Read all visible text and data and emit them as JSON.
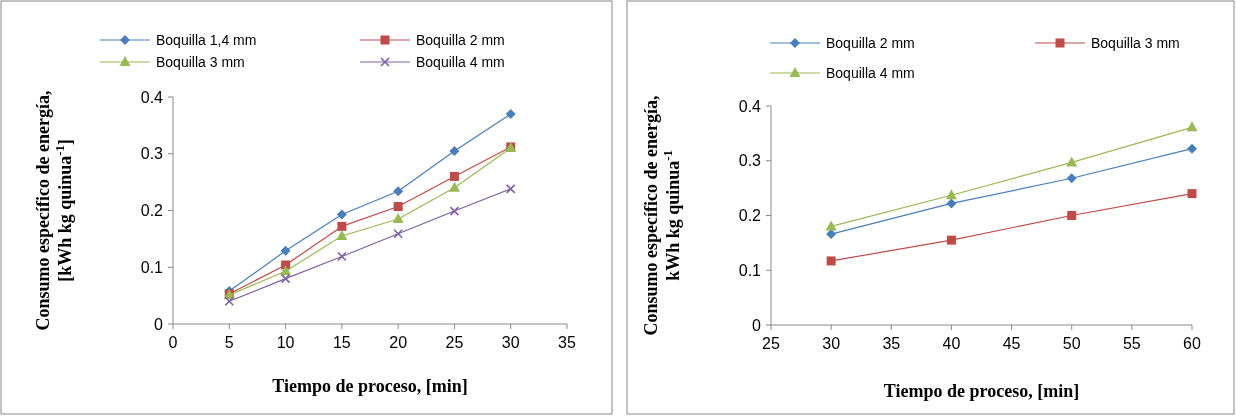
{
  "chart_data": [
    {
      "type": "line",
      "xlabel": "Tiempo de proceso, [min]",
      "ylabel": "Consumo específico de energía,\n[kWh kg quinua$^{-1}$]",
      "x": [
        5,
        10,
        15,
        20,
        25,
        30
      ],
      "xlim": [
        0,
        35
      ],
      "xticks": [
        0,
        5,
        10,
        15,
        20,
        25,
        30,
        35
      ],
      "ylim": [
        0,
        0.4
      ],
      "yticks": [
        0,
        0.1,
        0.2,
        0.3,
        0.4
      ],
      "legend": "top",
      "grid": false,
      "series": [
        {
          "name": "Boquilla 1,4 mm",
          "color": "#4a7ebb",
          "marker": "diamond",
          "values": [
            0.058,
            0.129,
            0.193,
            0.234,
            0.305,
            0.37
          ]
        },
        {
          "name": "Boquilla 2 mm",
          "color": "#be4b48",
          "marker": "square",
          "values": [
            0.053,
            0.104,
            0.172,
            0.207,
            0.26,
            0.312
          ]
        },
        {
          "name": "Boquilla 3 mm",
          "color": "#98b954",
          "marker": "triangle",
          "values": [
            0.051,
            0.093,
            0.155,
            0.185,
            0.24,
            0.31
          ]
        },
        {
          "name": "Boquilla 4 mm",
          "color": "#7d60a0",
          "marker": "cross",
          "values": [
            0.04,
            0.08,
            0.119,
            0.159,
            0.199,
            0.238
          ]
        }
      ]
    },
    {
      "type": "line",
      "xlabel": "Tiempo de proceso, [min]",
      "ylabel": "Consumo específico de energía,\nkWh kg quinua$^{-1}$",
      "x": [
        30,
        40,
        50,
        60
      ],
      "xlim": [
        25,
        60
      ],
      "xticks": [
        25,
        30,
        35,
        40,
        45,
        50,
        55,
        60
      ],
      "ylim": [
        0,
        0.4
      ],
      "yticks": [
        0,
        0.1,
        0.2,
        0.3,
        0.4
      ],
      "legend": "top",
      "grid": false,
      "series": [
        {
          "name": "Boquilla 2 mm",
          "color": "#4a7ebb",
          "marker": "diamond",
          "values": [
            0.166,
            0.222,
            0.268,
            0.322
          ]
        },
        {
          "name": "Boquilla 3 mm",
          "color": "#be4b48",
          "marker": "square",
          "values": [
            0.117,
            0.155,
            0.2,
            0.24
          ]
        },
        {
          "name": "Boquilla 4 mm",
          "color": "#98b954",
          "marker": "triangle",
          "values": [
            0.18,
            0.237,
            0.297,
            0.361
          ]
        }
      ]
    }
  ]
}
